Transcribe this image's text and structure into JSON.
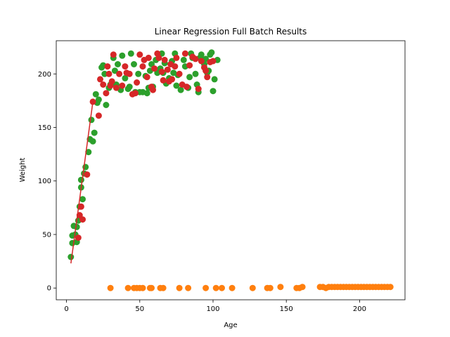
{
  "chart_data": {
    "type": "scatter",
    "title": "Linear Regression Full Batch Results",
    "xlabel": "Age",
    "ylabel": "Weight",
    "xlim": [
      -7,
      231
    ],
    "ylim": [
      -11,
      231
    ],
    "xticks": [
      0,
      50,
      100,
      150,
      200
    ],
    "yticks": [
      0,
      50,
      100,
      150,
      200
    ],
    "grid": false,
    "colors": {
      "green": "#2ca02c",
      "red": "#d62728",
      "orange": "#ff7f0e",
      "line": "#d62728"
    },
    "series": [
      {
        "color": "#2ca02c",
        "points": [
          [
            3,
            29
          ],
          [
            4,
            42
          ],
          [
            4,
            49
          ],
          [
            5,
            58
          ],
          [
            6,
            50
          ],
          [
            7,
            43
          ],
          [
            7,
            57
          ],
          [
            8,
            63
          ],
          [
            9,
            76
          ],
          [
            10,
            94
          ],
          [
            10,
            101
          ],
          [
            11,
            83
          ],
          [
            12,
            107
          ],
          [
            13,
            113
          ],
          [
            15,
            127
          ],
          [
            16,
            139
          ],
          [
            17,
            157
          ],
          [
            18,
            137
          ],
          [
            19,
            145
          ],
          [
            20,
            181
          ],
          [
            21,
            173
          ],
          [
            22,
            176
          ],
          [
            24,
            206
          ],
          [
            25,
            208
          ],
          [
            26,
            200
          ],
          [
            27,
            171
          ],
          [
            29,
            187
          ],
          [
            30,
            190
          ],
          [
            32,
            215
          ],
          [
            33,
            203
          ],
          [
            34,
            190
          ],
          [
            35,
            209
          ],
          [
            37,
            185
          ],
          [
            38,
            217
          ],
          [
            40,
            196
          ],
          [
            42,
            186
          ],
          [
            43,
            188
          ],
          [
            44,
            219
          ],
          [
            46,
            209
          ],
          [
            47,
            183
          ],
          [
            49,
            200
          ],
          [
            50,
            183
          ],
          [
            52,
            183
          ],
          [
            54,
            198
          ],
          [
            55,
            182
          ],
          [
            56,
            187
          ],
          [
            57,
            203
          ],
          [
            58,
            209
          ],
          [
            59,
            188
          ],
          [
            61,
            213
          ],
          [
            62,
            201
          ],
          [
            64,
            205
          ],
          [
            65,
            219
          ],
          [
            66,
            201
          ],
          [
            67,
            210
          ],
          [
            68,
            191
          ],
          [
            70,
            196
          ],
          [
            72,
            212
          ],
          [
            73,
            201
          ],
          [
            74,
            219
          ],
          [
            75,
            189
          ],
          [
            76,
            199
          ],
          [
            78,
            185
          ],
          [
            80,
            213
          ],
          [
            81,
            207
          ],
          [
            83,
            187
          ],
          [
            84,
            197
          ],
          [
            85,
            219
          ],
          [
            86,
            215
          ],
          [
            88,
            200
          ],
          [
            89,
            190
          ],
          [
            90,
            183
          ],
          [
            91,
            215
          ],
          [
            92,
            218
          ],
          [
            93,
            213
          ],
          [
            94,
            209
          ],
          [
            95,
            214
          ],
          [
            96,
            201
          ],
          [
            97,
            203
          ],
          [
            98,
            218
          ],
          [
            99,
            220
          ],
          [
            100,
            184
          ],
          [
            101,
            195
          ],
          [
            103,
            213
          ]
        ]
      },
      {
        "color": "#d62728",
        "points": [
          [
            8,
            47
          ],
          [
            9,
            68
          ],
          [
            10,
            76
          ],
          [
            11,
            64
          ],
          [
            14,
            106
          ],
          [
            18,
            174
          ],
          [
            22,
            161
          ],
          [
            23,
            195
          ],
          [
            25,
            190
          ],
          [
            27,
            182
          ],
          [
            28,
            207
          ],
          [
            29,
            200
          ],
          [
            30,
            189
          ],
          [
            31,
            193
          ],
          [
            32,
            218
          ],
          [
            34,
            187
          ],
          [
            36,
            200
          ],
          [
            38,
            189
          ],
          [
            40,
            207
          ],
          [
            41,
            201
          ],
          [
            43,
            200
          ],
          [
            45,
            181
          ],
          [
            47,
            182
          ],
          [
            48,
            192
          ],
          [
            50,
            218
          ],
          [
            52,
            207
          ],
          [
            53,
            213
          ],
          [
            55,
            197
          ],
          [
            56,
            215
          ],
          [
            58,
            188
          ],
          [
            59,
            185
          ],
          [
            60,
            205
          ],
          [
            62,
            219
          ],
          [
            63,
            215
          ],
          [
            65,
            202
          ],
          [
            66,
            194
          ],
          [
            67,
            213
          ],
          [
            69,
            204
          ],
          [
            70,
            193
          ],
          [
            71,
            209
          ],
          [
            72,
            195
          ],
          [
            74,
            207
          ],
          [
            75,
            215
          ],
          [
            77,
            200
          ],
          [
            79,
            190
          ],
          [
            81,
            219
          ],
          [
            82,
            188
          ],
          [
            84,
            208
          ],
          [
            86,
            216
          ],
          [
            88,
            214
          ],
          [
            90,
            186
          ],
          [
            92,
            212
          ],
          [
            94,
            206
          ],
          [
            95,
            203
          ],
          [
            96,
            197
          ],
          [
            98,
            211
          ],
          [
            100,
            212
          ]
        ]
      },
      {
        "color": "#ff7f0e",
        "points": [
          [
            30,
            0
          ],
          [
            42,
            0
          ],
          [
            46,
            0
          ],
          [
            48,
            0
          ],
          [
            50,
            0
          ],
          [
            52,
            0
          ],
          [
            57,
            0
          ],
          [
            58,
            0
          ],
          [
            64,
            0
          ],
          [
            66,
            0
          ],
          [
            77,
            0
          ],
          [
            83,
            0
          ],
          [
            95,
            0
          ],
          [
            102,
            0
          ],
          [
            106,
            0
          ],
          [
            113,
            0
          ],
          [
            127,
            0
          ],
          [
            137,
            0
          ],
          [
            139,
            0
          ],
          [
            146,
            1
          ],
          [
            157,
            0
          ],
          [
            159,
            0
          ],
          [
            161,
            1
          ],
          [
            173,
            1
          ],
          [
            175,
            1
          ],
          [
            177,
            0
          ],
          [
            179,
            1
          ],
          [
            181,
            1
          ],
          [
            183,
            1
          ],
          [
            185,
            1
          ],
          [
            187,
            1
          ],
          [
            189,
            1
          ],
          [
            191,
            1
          ],
          [
            193,
            1
          ],
          [
            195,
            1
          ],
          [
            197,
            1
          ],
          [
            199,
            1
          ],
          [
            201,
            1
          ],
          [
            203,
            1
          ],
          [
            205,
            1
          ],
          [
            207,
            1
          ],
          [
            209,
            1
          ],
          [
            211,
            1
          ],
          [
            213,
            1
          ],
          [
            215,
            1
          ],
          [
            217,
            1
          ],
          [
            219,
            1
          ],
          [
            221,
            1
          ]
        ]
      }
    ],
    "fit_line": {
      "color": "#d62728",
      "x": [
        3,
        18
      ],
      "y": [
        23,
        174
      ]
    }
  }
}
